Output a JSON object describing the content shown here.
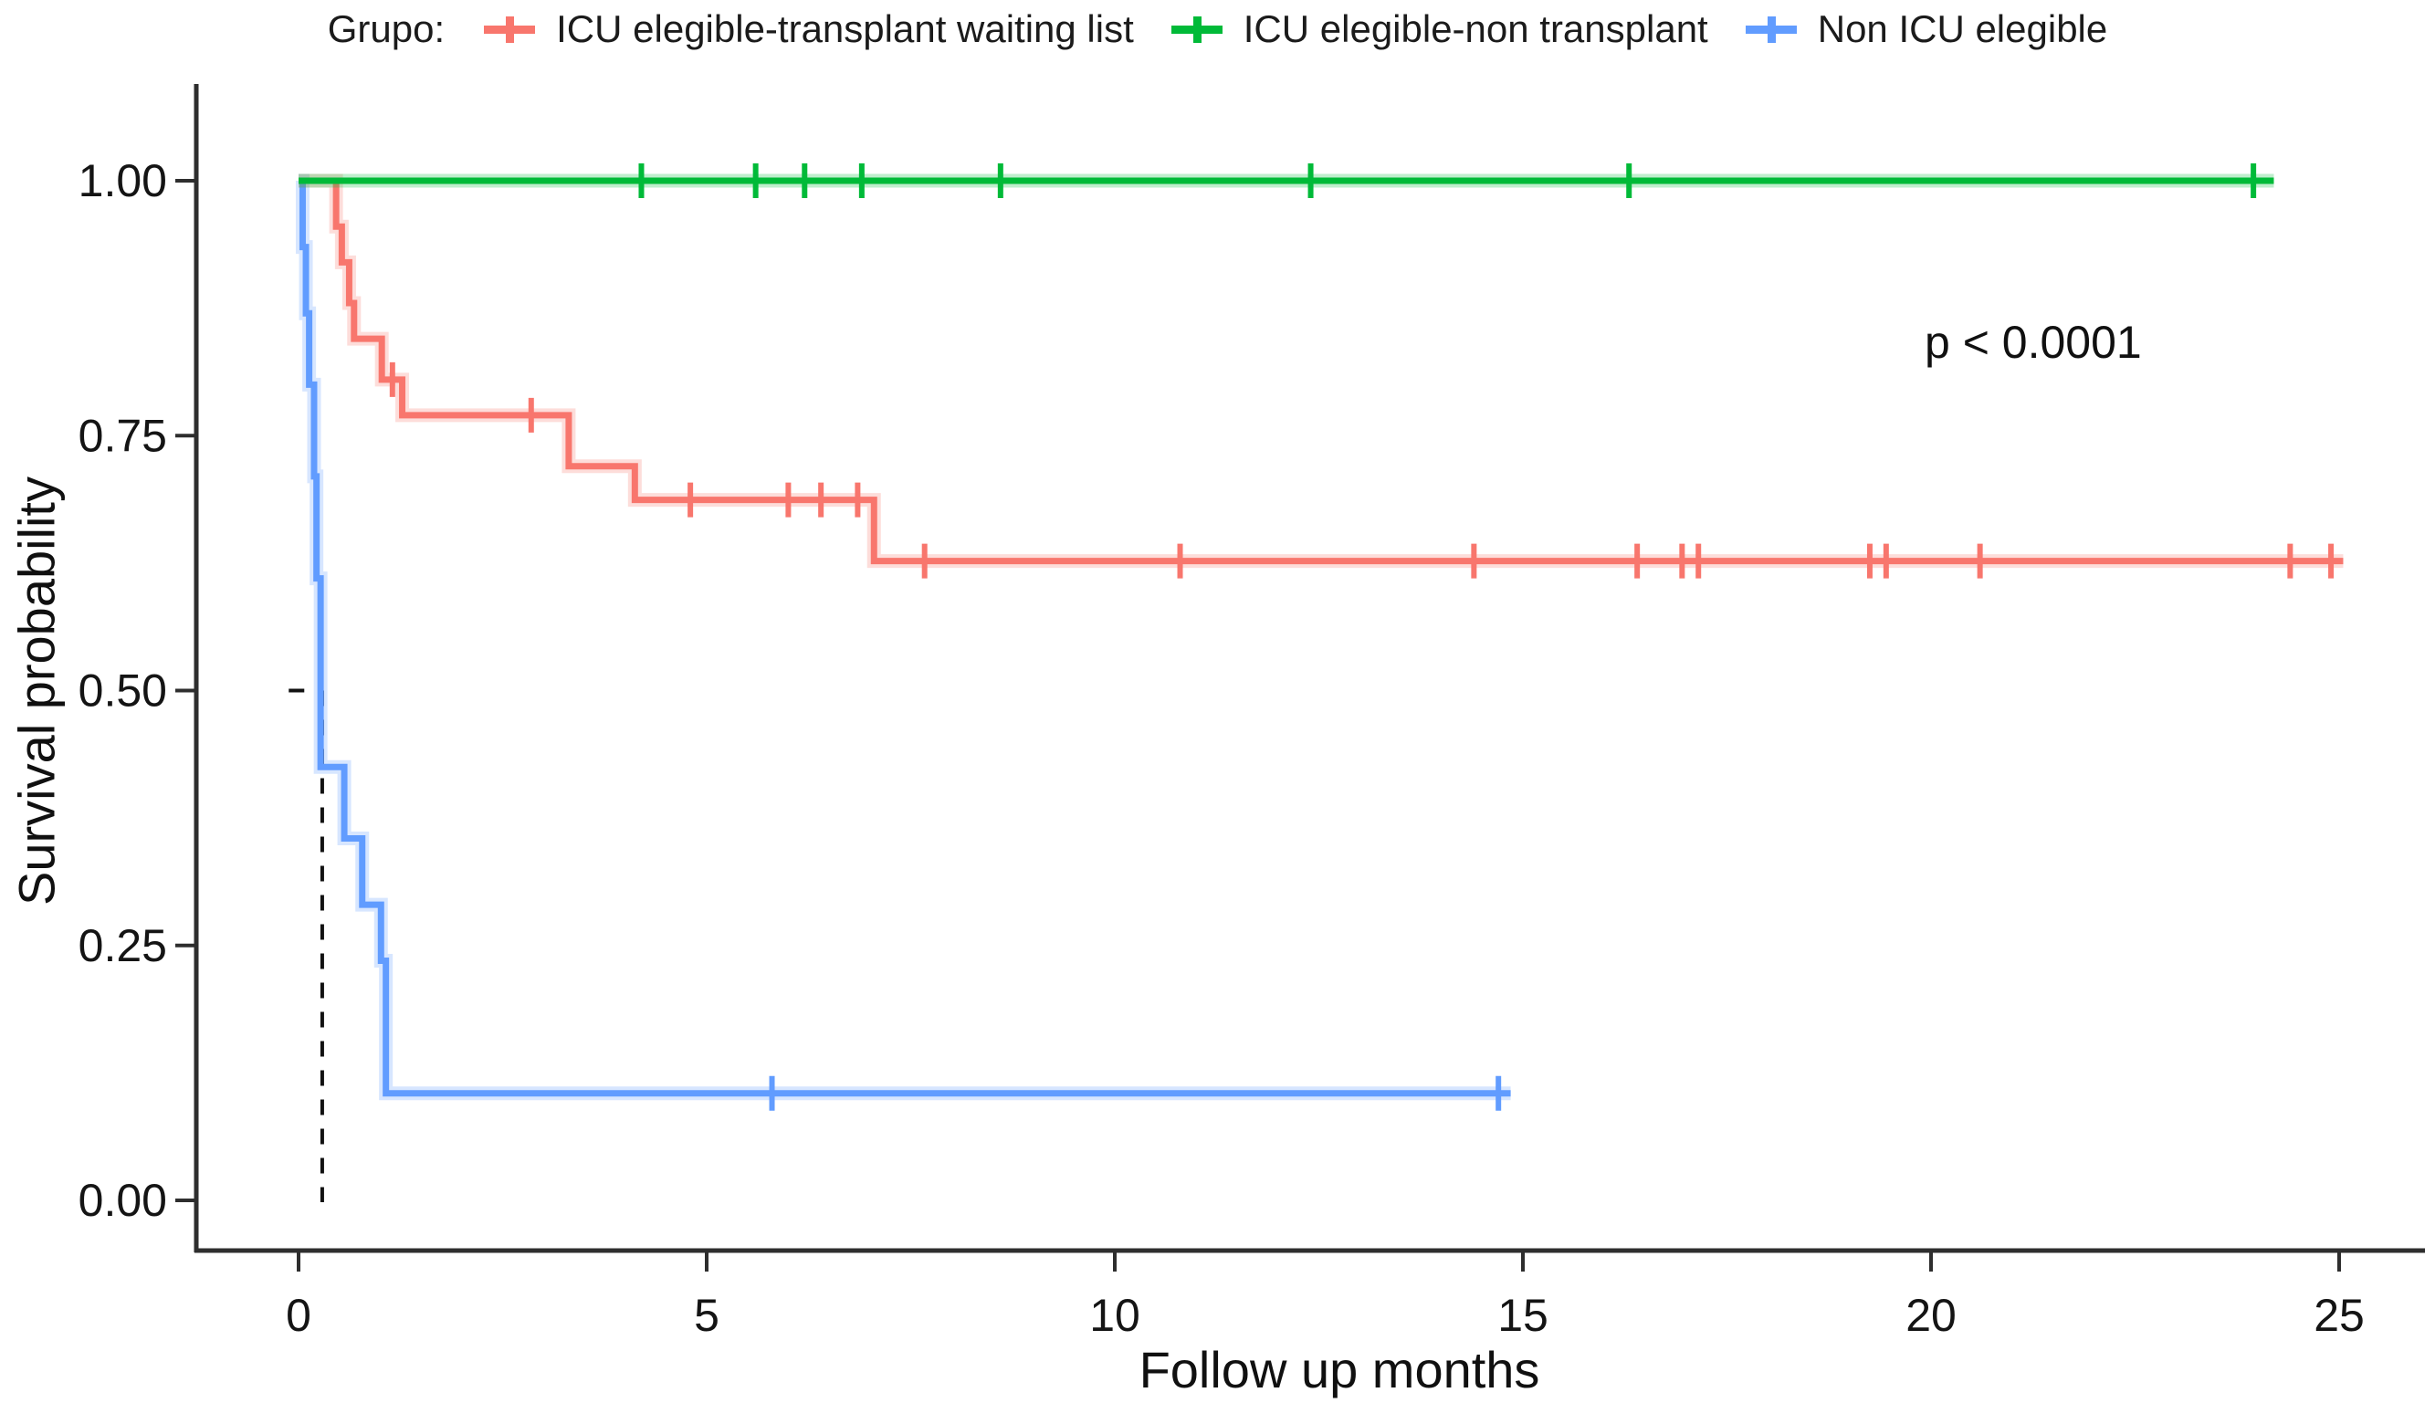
{
  "legend": {
    "title": "Grupo:",
    "entries": [
      {
        "label": "ICU elegible-transplant waiting list",
        "color": "#F8766D"
      },
      {
        "label": "ICU elegible-non transplant",
        "color": "#00BA38"
      },
      {
        "label": "Non ICU elegible",
        "color": "#619CFF"
      }
    ]
  },
  "annotation": "p < 0.0001",
  "chart_data": {
    "type": "line",
    "subtype": "kaplan-meier-step-curves",
    "title": "",
    "xlabel": "Follow up months",
    "ylabel": "Survival probability",
    "x_ticks": [
      0,
      5,
      10,
      15,
      20,
      25
    ],
    "y_tick_labels": [
      "1.00",
      "0.75",
      "0.50",
      "0.25",
      "0.00"
    ],
    "y_tick_values": [
      1.0,
      0.75,
      0.5,
      0.25,
      0.0
    ],
    "xlim": [
      -1.3,
      26.2
    ],
    "ylim": [
      0,
      1
    ],
    "grid": false,
    "legend_position": "top",
    "axis_color": "#2e2e2e",
    "dashed_line_color": "#111111",
    "series": [
      {
        "name": "Non ICU elegible",
        "color": "#619CFF",
        "steps": [
          [
            0,
            1.0
          ],
          [
            0.05,
            0.935
          ],
          [
            0.09,
            0.87
          ],
          [
            0.13,
            0.8
          ],
          [
            0.19,
            0.71
          ],
          [
            0.22,
            0.61
          ],
          [
            0.27,
            0.425
          ],
          [
            0.56,
            0.355
          ],
          [
            0.78,
            0.29
          ],
          [
            1.01,
            0.235
          ],
          [
            1.07,
            0.105
          ]
        ],
        "end_t": 14.85,
        "censors": [
          [
            5.8,
            0.105
          ],
          [
            14.7,
            0.105
          ]
        ]
      },
      {
        "name": "ICU elegible-transplant waiting list",
        "color": "#F8766D",
        "steps": [
          [
            0,
            1.0
          ],
          [
            0.46,
            0.955
          ],
          [
            0.53,
            0.92
          ],
          [
            0.62,
            0.88
          ],
          [
            0.68,
            0.845
          ],
          [
            1.02,
            0.805
          ],
          [
            1.27,
            0.77
          ],
          [
            3.31,
            0.72
          ],
          [
            4.12,
            0.687
          ],
          [
            7.05,
            0.627
          ]
        ],
        "end_t": 25.05,
        "censors": [
          [
            1.15,
            0.805
          ],
          [
            2.85,
            0.77
          ],
          [
            4.8,
            0.687
          ],
          [
            6.0,
            0.687
          ],
          [
            6.4,
            0.687
          ],
          [
            6.85,
            0.687
          ],
          [
            7.67,
            0.627
          ],
          [
            10.8,
            0.627
          ],
          [
            14.4,
            0.627
          ],
          [
            16.4,
            0.627
          ],
          [
            16.95,
            0.627
          ],
          [
            17.15,
            0.627
          ],
          [
            19.25,
            0.627
          ],
          [
            19.45,
            0.627
          ],
          [
            20.6,
            0.627
          ],
          [
            24.4,
            0.627
          ],
          [
            24.9,
            0.627
          ]
        ]
      },
      {
        "name": "ICU elegible-non transplant",
        "color": "#00BA38",
        "steps": [
          [
            0,
            1.0
          ]
        ],
        "end_t": 24.2,
        "censors": [
          [
            4.2,
            1.0
          ],
          [
            5.6,
            1.0
          ],
          [
            6.2,
            1.0
          ],
          [
            6.9,
            1.0
          ],
          [
            8.6,
            1.0
          ],
          [
            12.4,
            1.0
          ],
          [
            16.3,
            1.0
          ],
          [
            23.95,
            1.0
          ]
        ]
      }
    ],
    "median_line": {
      "t": 0.29,
      "p": 0.5,
      "h_from_t": -0.12
    }
  }
}
